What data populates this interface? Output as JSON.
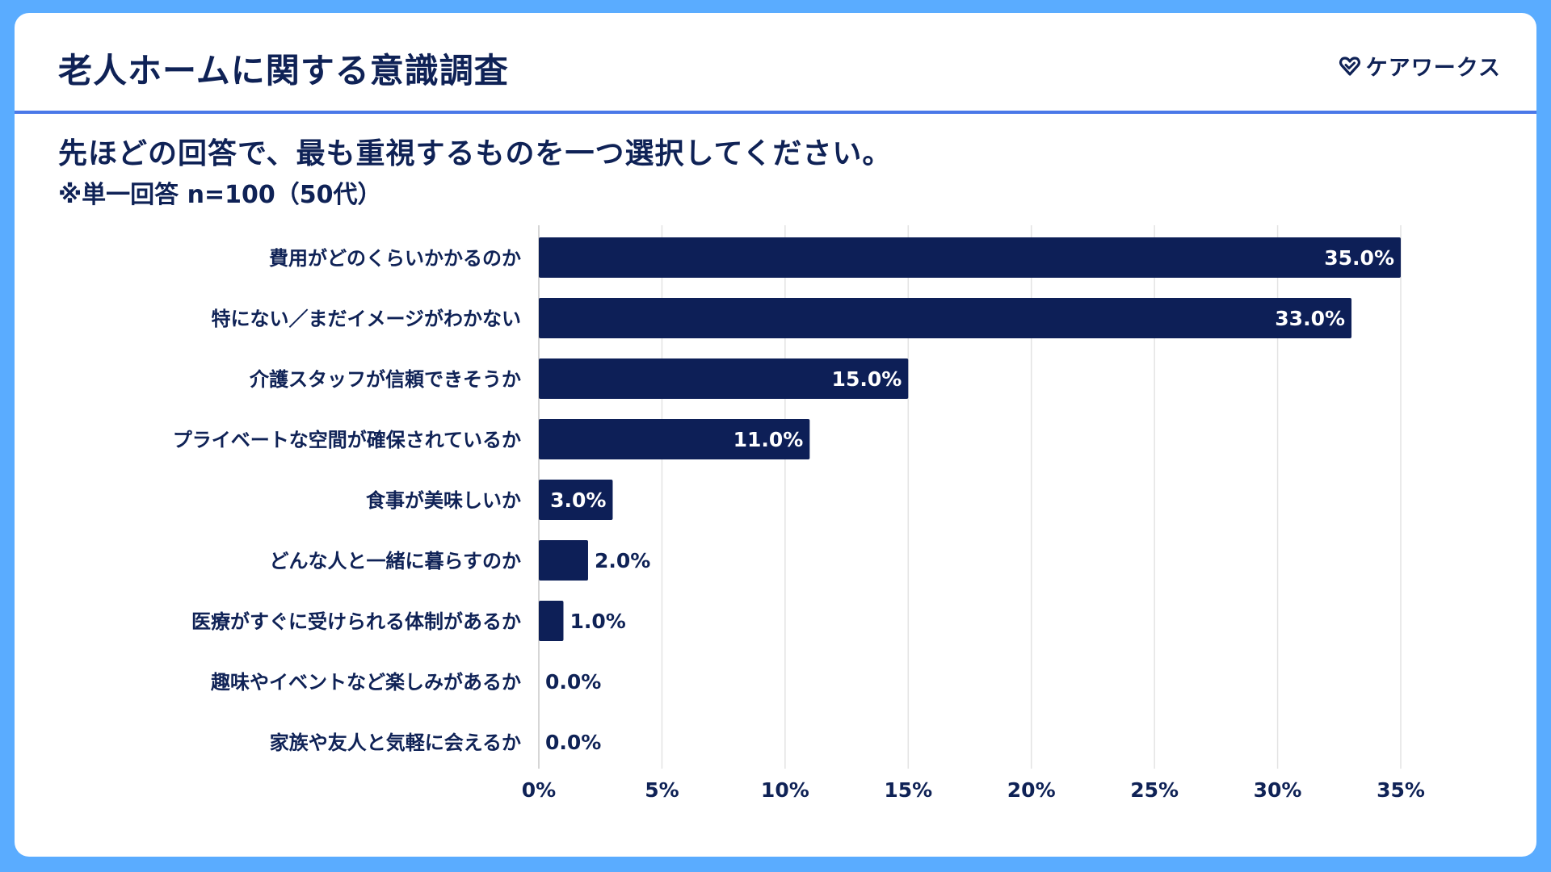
{
  "header": {
    "title": "老人ホームに関する意識調査",
    "logo_text": "ケアワークス",
    "logo_icon": "heart-check-icon"
  },
  "question": "先ほどの回答で、最も重視するものを一つ選択してください。",
  "note": "※単一回答 n=100（50代）",
  "colors": {
    "bar": "#0d1f57",
    "accent": "#4a78e8",
    "background": "#5aacff",
    "grid": "#e3e3e3"
  },
  "chart_data": {
    "type": "bar",
    "orientation": "horizontal",
    "categories": [
      "費用がどのくらいかかるのか",
      "特にない／まだイメージがわかない",
      "介護スタッフが信頼できそうか",
      "プライベートな空間が確保されているか",
      "食事が美味しいか",
      "どんな人と一緒に暮らすのか",
      "医療がすぐに受けられる体制があるか",
      "趣味やイベントなど楽しみがあるか",
      "家族や友人と気軽に会えるか"
    ],
    "values": [
      35.0,
      33.0,
      15.0,
      11.0,
      3.0,
      2.0,
      1.0,
      0.0,
      0.0
    ],
    "value_labels": [
      "35.0%",
      "33.0%",
      "15.0%",
      "11.0%",
      "3.0%",
      "2.0%",
      "1.0%",
      "0.0%",
      "0.0%"
    ],
    "xlim": [
      0,
      35
    ],
    "xticks": [
      0,
      5,
      10,
      15,
      20,
      25,
      30,
      35
    ],
    "xtick_labels": [
      "0%",
      "5%",
      "10%",
      "15%",
      "20%",
      "25%",
      "30%",
      "35%"
    ],
    "grid": true,
    "legend": "none"
  }
}
